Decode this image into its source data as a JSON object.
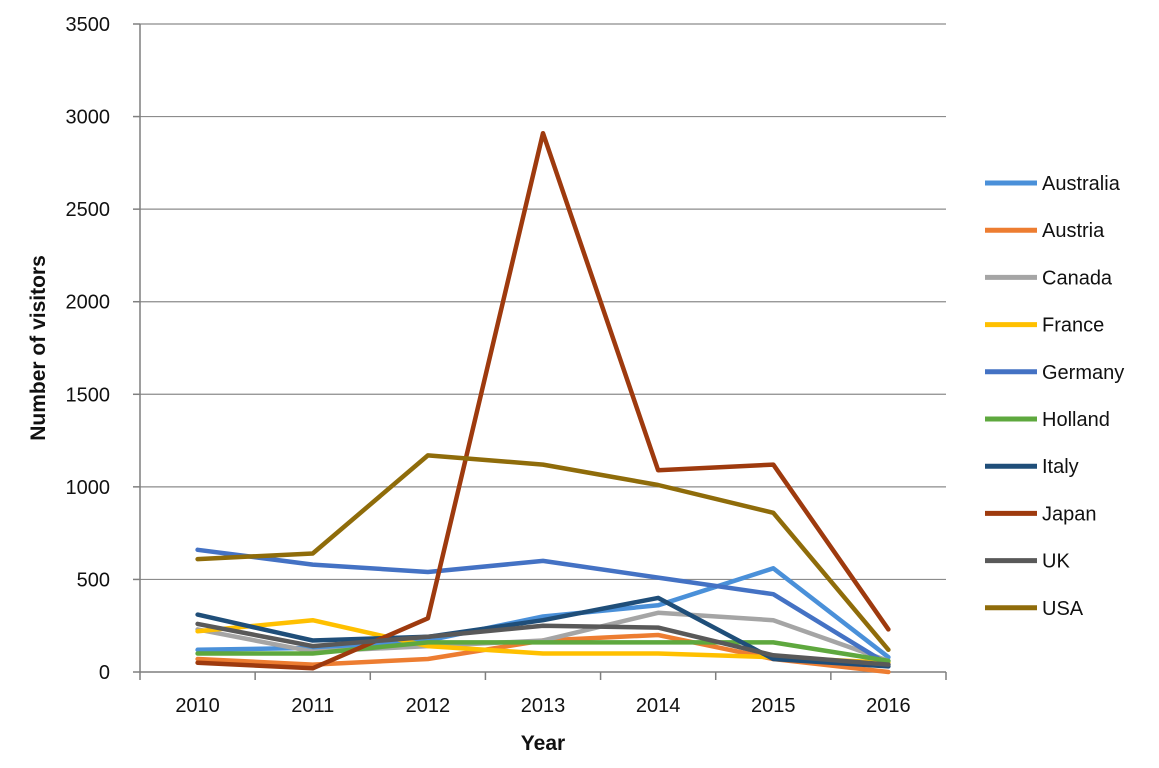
{
  "chart_data": {
    "type": "line",
    "title": "",
    "xlabel": "Year",
    "ylabel": "Number of visitors",
    "categories": [
      "2010",
      "2011",
      "2012",
      "2013",
      "2014",
      "2015",
      "2016"
    ],
    "ylim": [
      0,
      3500
    ],
    "yticks": [
      0,
      500,
      1000,
      1500,
      2000,
      2500,
      3000,
      3500
    ],
    "grid": "horizontal",
    "legend_position": "right",
    "series": [
      {
        "name": "Australia",
        "color": "#4a90d9",
        "values": [
          120,
          130,
          170,
          300,
          360,
          560,
          80
        ]
      },
      {
        "name": "Austria",
        "color": "#ed7d31",
        "values": [
          70,
          40,
          70,
          170,
          200,
          70,
          0
        ]
      },
      {
        "name": "Canada",
        "color": "#a5a5a5",
        "values": [
          230,
          110,
          140,
          170,
          320,
          280,
          60
        ]
      },
      {
        "name": "France",
        "color": "#ffc000",
        "values": [
          220,
          280,
          140,
          100,
          100,
          80,
          50
        ]
      },
      {
        "name": "Germany",
        "color": "#4472c4",
        "values": [
          660,
          580,
          540,
          600,
          510,
          420,
          40
        ]
      },
      {
        "name": "Holland",
        "color": "#5ea83e",
        "values": [
          100,
          100,
          160,
          160,
          160,
          160,
          60
        ]
      },
      {
        "name": "Italy",
        "color": "#1f4e79",
        "values": [
          310,
          170,
          190,
          280,
          400,
          70,
          30
        ]
      },
      {
        "name": "Japan",
        "color": "#9e3a0e",
        "values": [
          50,
          20,
          290,
          2910,
          1090,
          1120,
          230
        ]
      },
      {
        "name": "UK",
        "color": "#595959",
        "values": [
          260,
          140,
          190,
          250,
          240,
          90,
          40
        ]
      },
      {
        "name": "USA",
        "color": "#8f6c0a",
        "values": [
          610,
          640,
          1170,
          1120,
          1010,
          860,
          120
        ]
      }
    ]
  }
}
